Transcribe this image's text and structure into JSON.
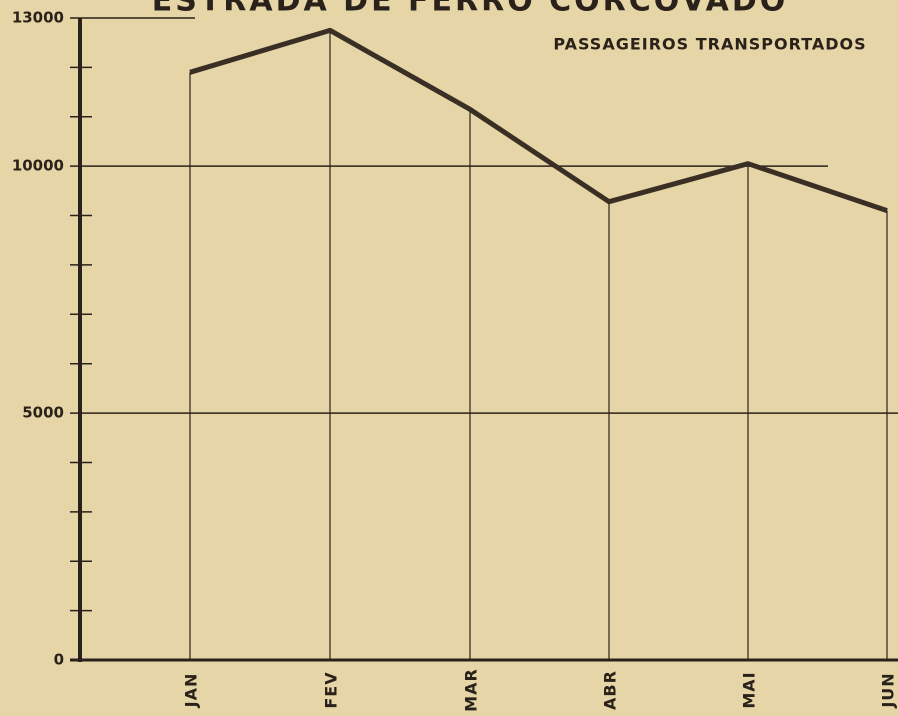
{
  "chart_data": {
    "type": "line",
    "title": "ESTRADA DE FERRO CORCOVADO",
    "categories": [
      "JAN",
      "FEV",
      "MAR",
      "ABR",
      "MAI",
      "JUN"
    ],
    "series": [
      {
        "name": "PASSAGEIROS TRANSPORTADOS",
        "color": "#3a2f25",
        "values": [
          11900,
          12750,
          11150,
          9280,
          10050,
          9100
        ]
      }
    ],
    "ylim": [
      0,
      13000
    ],
    "yticks": [
      0,
      5000,
      10000,
      13000
    ],
    "minor_yticks": [
      1000,
      2000,
      3000,
      4000,
      6000,
      7000,
      8000,
      9000,
      11000,
      12000
    ],
    "grid": true
  }
}
